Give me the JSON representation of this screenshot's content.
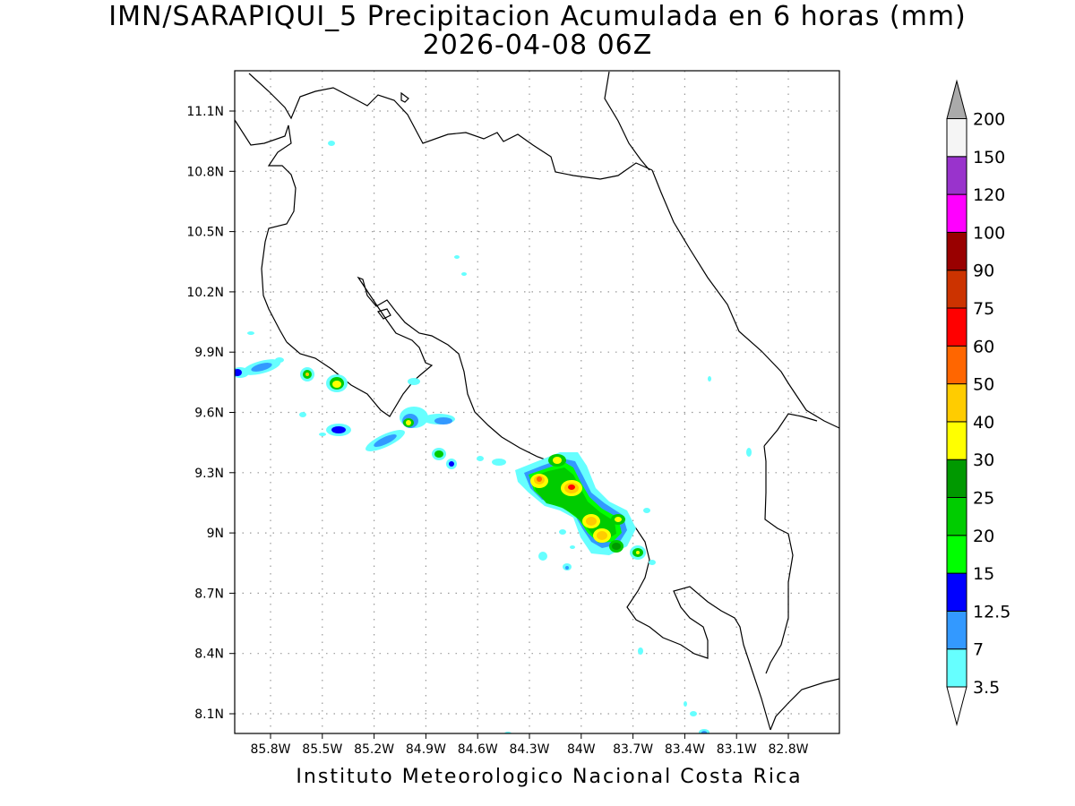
{
  "map": {
    "title": "IMN/SARAPIQUI_5 Precipitacion Acumulada en 6 horas (mm)",
    "subtitle": "2026-04-08 06Z",
    "credit": "Instituto Meteorologico Nacional Costa Rica",
    "lon_labels": [
      "85.8W",
      "85.5W",
      "85.2W",
      "84.9W",
      "84.6W",
      "84.3W",
      "84W",
      "83.7W",
      "83.4W",
      "83.1W",
      "82.8W"
    ],
    "lat_labels": [
      "11.1N",
      "10.8N",
      "10.5N",
      "10.2N",
      "9.9N",
      "9.6N",
      "9.3N",
      "9N",
      "8.7N",
      "8.4N",
      "8.1N"
    ],
    "grid": "dotted"
  },
  "colorbar": {
    "labels": [
      "3.5",
      "7",
      "12.5",
      "15",
      "20",
      "25",
      "30",
      "40",
      "50",
      "60",
      "75",
      "90",
      "100",
      "120",
      "150",
      "200"
    ],
    "colors": [
      "#ffffff",
      "#66ffff",
      "#3399ff",
      "#0000ff",
      "#00ff00",
      "#00cc00",
      "#009900",
      "#ffff00",
      "#ffcc00",
      "#ff6600",
      "#ff0000",
      "#cc3300",
      "#990000",
      "#ff00ff",
      "#9933cc",
      "#f5f5f5",
      "#aaaaaa"
    ]
  },
  "palette": {
    "outline": "#000000",
    "gridline": "#999999"
  }
}
